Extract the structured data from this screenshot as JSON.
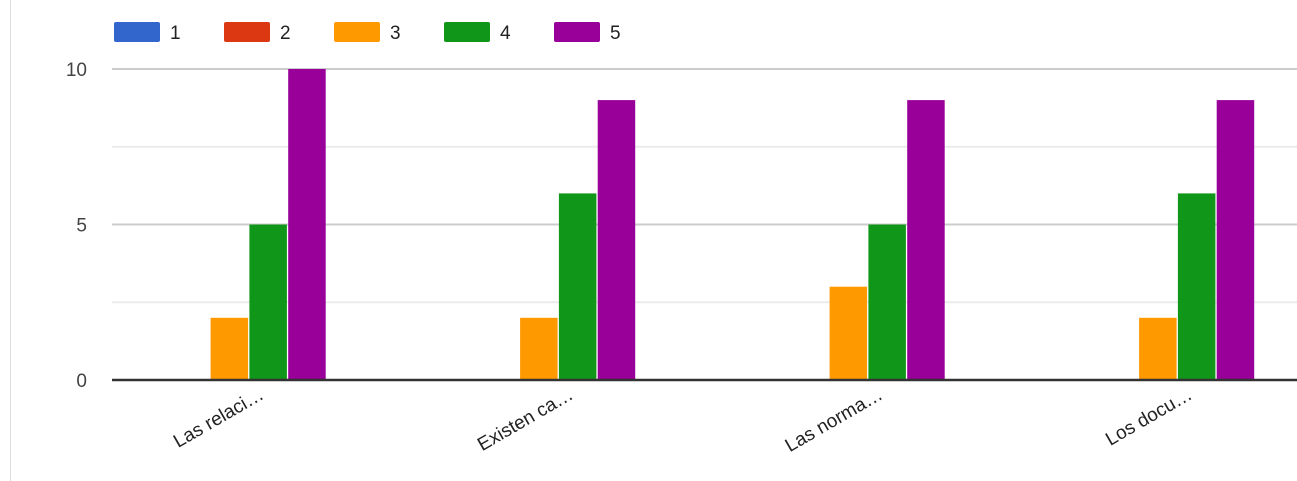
{
  "chart_data": {
    "type": "bar",
    "categories": [
      "Las relaci…",
      "Existen ca…",
      "Las norma…",
      "Los docu…"
    ],
    "series": [
      {
        "name": "1",
        "color": "#3366cc",
        "values": [
          0,
          0,
          0,
          0
        ]
      },
      {
        "name": "2",
        "color": "#dc3912",
        "values": [
          0,
          0,
          0,
          0
        ]
      },
      {
        "name": "3",
        "color": "#ff9900",
        "values": [
          2,
          2,
          3,
          2
        ]
      },
      {
        "name": "4",
        "color": "#109618",
        "values": [
          5,
          6,
          5,
          6
        ]
      },
      {
        "name": "5",
        "color": "#990099",
        "values": [
          10,
          9,
          9,
          9
        ]
      }
    ],
    "y_ticks": [
      0,
      5,
      10
    ],
    "ylim": [
      0,
      10
    ],
    "gridlines": true,
    "legend_position": "top-left"
  }
}
